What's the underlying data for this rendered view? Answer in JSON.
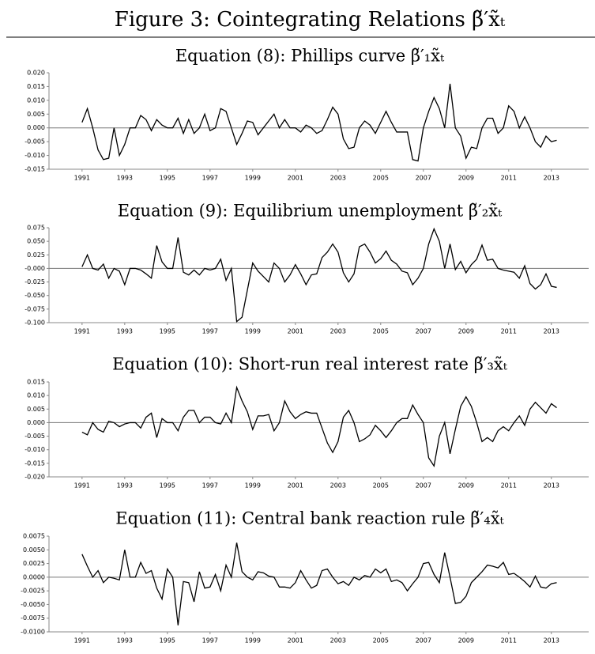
{
  "figure_title": "Figure 3: Cointegrating Relations β̃′x̃ₜ",
  "chart_data": [
    {
      "type": "line",
      "title": "Equation (8): Phillips curve β̃′₁x̃ₜ",
      "color": "#000000",
      "zero_line": true,
      "x": [
        1991,
        1991.25,
        1991.5,
        1991.75,
        1992,
        1992.25,
        1992.5,
        1992.75,
        1993,
        1993.25,
        1993.5,
        1993.75,
        1994,
        1994.25,
        1994.5,
        1994.75,
        1995,
        1995.25,
        1995.5,
        1995.75,
        1996,
        1996.25,
        1996.5,
        1996.75,
        1997,
        1997.25,
        1997.5,
        1997.75,
        1998,
        1998.25,
        1998.5,
        1998.75,
        1999,
        1999.25,
        1999.5,
        1999.75,
        2000,
        2000.25,
        2000.5,
        2000.75,
        2001,
        2001.25,
        2001.5,
        2001.75,
        2002,
        2002.25,
        2002.5,
        2002.75,
        2003,
        2003.25,
        2003.5,
        2003.75,
        2004,
        2004.25,
        2004.5,
        2004.75,
        2005,
        2005.25,
        2005.5,
        2005.75,
        2006,
        2006.25,
        2006.5,
        2006.75,
        2007,
        2007.25,
        2007.5,
        2007.75,
        2008,
        2008.25,
        2008.5,
        2008.75,
        2009,
        2009.25,
        2009.5,
        2009.75,
        2010,
        2010.25,
        2010.5,
        2010.75,
        2011,
        2011.25,
        2011.5,
        2011.75,
        2012,
        2012.25,
        2012.5,
        2012.75,
        2013,
        2013.25
      ],
      "values": [
        0.002,
        0.007,
        0.0,
        -0.008,
        -0.0115,
        -0.011,
        0.0,
        -0.01,
        -0.006,
        0.0,
        0.0,
        0.0045,
        0.003,
        -0.001,
        0.003,
        0.001,
        0.0,
        0.0,
        0.0035,
        -0.002,
        0.003,
        -0.002,
        0.0,
        0.005,
        -0.001,
        0.0,
        0.007,
        0.006,
        0.0,
        -0.006,
        -0.002,
        0.0025,
        0.002,
        -0.0025,
        0.0,
        0.0025,
        0.005,
        0.0,
        0.003,
        0.0,
        0.0,
        -0.0015,
        0.001,
        0.0,
        -0.002,
        -0.001,
        0.003,
        0.0075,
        0.005,
        -0.004,
        -0.0075,
        -0.007,
        0.0,
        0.0025,
        0.001,
        -0.002,
        0.002,
        0.006,
        0.002,
        -0.0015,
        -0.0015,
        -0.0015,
        -0.0115,
        -0.012,
        0.0,
        0.006,
        0.011,
        0.007,
        0.0,
        0.016,
        0.0,
        -0.003,
        -0.011,
        -0.007,
        -0.0075,
        0.0,
        0.0035,
        0.0035,
        -0.002,
        0.0,
        0.008,
        0.006,
        0.0,
        0.004,
        0.0,
        -0.005,
        -0.007,
        -0.003,
        -0.005,
        -0.0045
      ],
      "xlim": [
        1989.45,
        2014.75
      ],
      "xticks": [
        1991,
        1993,
        1995,
        1997,
        1999,
        2001,
        2003,
        2005,
        2007,
        2009,
        2011,
        2013
      ],
      "ylim": [
        -0.015,
        0.02
      ],
      "yticks": [
        {
          "value": 0.02,
          "label": "0.020"
        },
        {
          "value": 0.015,
          "label": "0.015"
        },
        {
          "value": 0.01,
          "label": "0.010"
        },
        {
          "value": 0.005,
          "label": "0.005"
        },
        {
          "value": 0,
          "label": "0.000"
        },
        {
          "value": -0.005,
          "label": "-0.005"
        },
        {
          "value": -0.01,
          "label": "-0.010"
        },
        {
          "value": -0.015,
          "label": "-0.015"
        }
      ]
    },
    {
      "type": "line",
      "title": "Equation (9): Equilibrium unemployment β̃′₂x̃ₜ",
      "color": "#000000",
      "zero_line": true,
      "x": [
        1991,
        1991.25,
        1991.5,
        1991.75,
        1992,
        1992.25,
        1992.5,
        1992.75,
        1993,
        1993.25,
        1993.5,
        1993.75,
        1994,
        1994.25,
        1994.5,
        1994.75,
        1995,
        1995.25,
        1995.5,
        1995.75,
        1996,
        1996.25,
        1996.5,
        1996.75,
        1997,
        1997.25,
        1997.5,
        1997.75,
        1998,
        1998.25,
        1998.5,
        1998.75,
        1999,
        1999.25,
        1999.5,
        1999.75,
        2000,
        2000.25,
        2000.5,
        2000.75,
        2001,
        2001.25,
        2001.5,
        2001.75,
        2002,
        2002.25,
        2002.5,
        2002.75,
        2003,
        2003.25,
        2003.5,
        2003.75,
        2004,
        2004.25,
        2004.5,
        2004.75,
        2005,
        2005.25,
        2005.5,
        2005.75,
        2006,
        2006.25,
        2006.5,
        2006.75,
        2007,
        2007.25,
        2007.5,
        2007.75,
        2008,
        2008.25,
        2008.5,
        2008.75,
        2009,
        2009.25,
        2009.5,
        2009.75,
        2010,
        2010.25,
        2010.5,
        2010.75,
        2011,
        2011.25,
        2011.5,
        2011.75,
        2012,
        2012.25,
        2012.5,
        2012.75,
        2013,
        2013.25
      ],
      "values": [
        0.003,
        0.025,
        0.0,
        -0.003,
        0.008,
        -0.018,
        0.0,
        -0.005,
        -0.03,
        0.0,
        0.0,
        -0.003,
        -0.01,
        -0.018,
        0.042,
        0.012,
        0.0,
        0.0,
        0.057,
        -0.007,
        -0.012,
        -0.003,
        -0.012,
        0.0,
        -0.003,
        0.0,
        0.017,
        -0.022,
        0.0,
        -0.098,
        -0.09,
        -0.04,
        0.01,
        -0.005,
        -0.015,
        -0.025,
        0.01,
        0.0,
        -0.025,
        -0.012,
        0.007,
        -0.01,
        -0.03,
        -0.012,
        -0.01,
        0.02,
        0.03,
        0.045,
        0.03,
        -0.008,
        -0.025,
        -0.01,
        0.04,
        0.045,
        0.03,
        0.01,
        0.018,
        0.032,
        0.015,
        0.008,
        -0.005,
        -0.008,
        -0.03,
        -0.018,
        0.0,
        0.045,
        0.073,
        0.05,
        0.0,
        0.045,
        -0.002,
        0.013,
        -0.008,
        0.007,
        0.017,
        0.043,
        0.015,
        0.017,
        0.0,
        -0.003,
        -0.005,
        -0.007,
        -0.018,
        0.005,
        -0.028,
        -0.038,
        -0.03,
        -0.01,
        -0.033,
        -0.035
      ],
      "xlim": [
        1989.45,
        2014.75
      ],
      "xticks": [
        1991,
        1993,
        1995,
        1997,
        1999,
        2001,
        2003,
        2005,
        2007,
        2009,
        2011,
        2013
      ],
      "ylim": [
        -0.1,
        0.075
      ],
      "yticks": [
        {
          "value": 0.075,
          "label": "0.075"
        },
        {
          "value": 0.05,
          "label": "0.050"
        },
        {
          "value": 0.025,
          "label": "0.025"
        },
        {
          "value": 0,
          "label": "-0.000"
        },
        {
          "value": -0.025,
          "label": "-0.025"
        },
        {
          "value": -0.05,
          "label": "-0.050"
        },
        {
          "value": -0.075,
          "label": "-0.075"
        },
        {
          "value": -0.1,
          "label": "-0.100"
        }
      ]
    },
    {
      "type": "line",
      "title": "Equation (10): Short-run real interest rate β̃′₃x̃ₜ",
      "color": "#000000",
      "zero_line": true,
      "x": [
        1991,
        1991.25,
        1991.5,
        1991.75,
        1992,
        1992.25,
        1992.5,
        1992.75,
        1993,
        1993.25,
        1993.5,
        1993.75,
        1994,
        1994.25,
        1994.5,
        1994.75,
        1995,
        1995.25,
        1995.5,
        1995.75,
        1996,
        1996.25,
        1996.5,
        1996.75,
        1997,
        1997.25,
        1997.5,
        1997.75,
        1998,
        1998.25,
        1998.5,
        1998.75,
        1999,
        1999.25,
        1999.5,
        1999.75,
        2000,
        2000.25,
        2000.5,
        2000.75,
        2001,
        2001.25,
        2001.5,
        2001.75,
        2002,
        2002.25,
        2002.5,
        2002.75,
        2003,
        2003.25,
        2003.5,
        2003.75,
        2004,
        2004.25,
        2004.5,
        2004.75,
        2005,
        2005.25,
        2005.5,
        2005.75,
        2006,
        2006.25,
        2006.5,
        2006.75,
        2007,
        2007.25,
        2007.5,
        2007.75,
        2008,
        2008.25,
        2008.5,
        2008.75,
        2009,
        2009.25,
        2009.5,
        2009.75,
        2010,
        2010.25,
        2010.5,
        2010.75,
        2011,
        2011.25,
        2011.5,
        2011.75,
        2012,
        2012.25,
        2012.5,
        2012.75,
        2013,
        2013.25
      ],
      "values": [
        -0.0035,
        -0.0045,
        0.0,
        -0.0025,
        -0.0035,
        0.0005,
        0.0,
        -0.0015,
        -0.0005,
        0.0,
        0.0,
        -0.002,
        0.002,
        0.0035,
        -0.0055,
        0.0015,
        0.0,
        0.0,
        -0.003,
        0.002,
        0.0045,
        0.0045,
        0.0,
        0.002,
        0.002,
        0.0,
        -0.0005,
        0.0035,
        0.0,
        0.013,
        0.008,
        0.004,
        -0.0025,
        0.0025,
        0.0025,
        0.003,
        -0.003,
        0.0,
        0.008,
        0.004,
        0.0015,
        0.003,
        0.004,
        0.0035,
        0.0035,
        -0.002,
        -0.0075,
        -0.011,
        -0.007,
        0.002,
        0.0045,
        0.0,
        -0.007,
        -0.006,
        -0.0045,
        -0.001,
        -0.003,
        -0.0055,
        -0.003,
        0.0,
        0.0015,
        0.0015,
        0.0065,
        0.003,
        0.0,
        -0.013,
        -0.016,
        -0.005,
        0.0,
        -0.0115,
        -0.0025,
        0.006,
        0.0095,
        0.006,
        0.0,
        -0.007,
        -0.0055,
        -0.007,
        -0.003,
        -0.0015,
        -0.003,
        0.0,
        0.0025,
        -0.001,
        0.005,
        0.0075,
        0.0055,
        0.0035,
        0.007,
        0.0055
      ],
      "xlim": [
        1989.45,
        2014.75
      ],
      "xticks": [
        1991,
        1993,
        1995,
        1997,
        1999,
        2001,
        2003,
        2005,
        2007,
        2009,
        2011,
        2013
      ],
      "ylim": [
        -0.02,
        0.015
      ],
      "yticks": [
        {
          "value": 0.015,
          "label": "0.015"
        },
        {
          "value": 0.01,
          "label": "0.010"
        },
        {
          "value": 0.005,
          "label": "0.005"
        },
        {
          "value": 0,
          "label": "0.000"
        },
        {
          "value": -0.005,
          "label": "-0.005"
        },
        {
          "value": -0.01,
          "label": "-0.010"
        },
        {
          "value": -0.015,
          "label": "-0.015"
        },
        {
          "value": -0.02,
          "label": "-0.020"
        }
      ]
    },
    {
      "type": "line",
      "title": "Equation (11): Central bank reaction rule β̃′₄x̃ₜ",
      "color": "#000000",
      "zero_line": true,
      "x": [
        1991,
        1991.25,
        1991.5,
        1991.75,
        1992,
        1992.25,
        1992.5,
        1992.75,
        1993,
        1993.25,
        1993.5,
        1993.75,
        1994,
        1994.25,
        1994.5,
        1994.75,
        1995,
        1995.25,
        1995.5,
        1995.75,
        1996,
        1996.25,
        1996.5,
        1996.75,
        1997,
        1997.25,
        1997.5,
        1997.75,
        1998,
        1998.25,
        1998.5,
        1998.75,
        1999,
        1999.25,
        1999.5,
        1999.75,
        2000,
        2000.25,
        2000.5,
        2000.75,
        2001,
        2001.25,
        2001.5,
        2001.75,
        2002,
        2002.25,
        2002.5,
        2002.75,
        2003,
        2003.25,
        2003.5,
        2003.75,
        2004,
        2004.25,
        2004.5,
        2004.75,
        2005,
        2005.25,
        2005.5,
        2005.75,
        2006,
        2006.25,
        2006.5,
        2006.75,
        2007,
        2007.25,
        2007.5,
        2007.75,
        2008,
        2008.25,
        2008.5,
        2008.75,
        2009,
        2009.25,
        2009.5,
        2009.75,
        2010,
        2010.25,
        2010.5,
        2010.75,
        2011,
        2011.25,
        2011.5,
        2011.75,
        2012,
        2012.25,
        2012.5,
        2012.75,
        2013,
        2013.25
      ],
      "values": [
        0.0042,
        0.002,
        0.0,
        0.0012,
        -0.001,
        0.0,
        -0.0002,
        -0.0005,
        0.005,
        0.0,
        0.0,
        0.0027,
        0.0007,
        0.0012,
        -0.002,
        -0.004,
        0.0015,
        0.0,
        -0.0088,
        -0.0008,
        -0.001,
        -0.0045,
        0.001,
        -0.002,
        -0.0018,
        0.0005,
        -0.0025,
        0.0022,
        0.0,
        0.0063,
        0.001,
        0.0,
        -0.0005,
        0.001,
        0.0008,
        0.0002,
        0.0,
        -0.0018,
        -0.0018,
        -0.002,
        -0.001,
        0.0012,
        -0.0005,
        -0.002,
        -0.0015,
        0.0012,
        0.0015,
        0.0,
        -0.0012,
        -0.0008,
        -0.0015,
        0.0,
        -0.0005,
        0.0003,
        0.0,
        0.0015,
        0.0008,
        0.0015,
        -0.0008,
        -0.0005,
        -0.001,
        -0.0025,
        -0.0012,
        0.0,
        0.0025,
        0.0027,
        0.0005,
        -0.001,
        0.0045,
        0.0,
        -0.0048,
        -0.0046,
        -0.0035,
        -0.001,
        0.0,
        0.001,
        0.0022,
        0.002,
        0.0017,
        0.0027,
        0.0005,
        0.0007,
        0.0,
        -0.0008,
        -0.0018,
        0.0002,
        -0.0018,
        -0.002,
        -0.0012,
        -0.001
      ],
      "xlim": [
        1989.45,
        2014.75
      ],
      "xticks": [
        1991,
        1993,
        1995,
        1997,
        1999,
        2001,
        2003,
        2005,
        2007,
        2009,
        2011,
        2013
      ],
      "ylim": [
        -0.01,
        0.0075
      ],
      "yticks": [
        {
          "value": 0.0075,
          "label": "0.0075"
        },
        {
          "value": 0.005,
          "label": "0.0050"
        },
        {
          "value": 0.0025,
          "label": "0.0025"
        },
        {
          "value": 0,
          "label": "0.0000"
        },
        {
          "value": -0.0025,
          "label": "-0.0025"
        },
        {
          "value": -0.005,
          "label": "-0.0050"
        },
        {
          "value": -0.0075,
          "label": "-0.0075"
        },
        {
          "value": -0.01,
          "label": "-0.0100"
        }
      ]
    }
  ]
}
